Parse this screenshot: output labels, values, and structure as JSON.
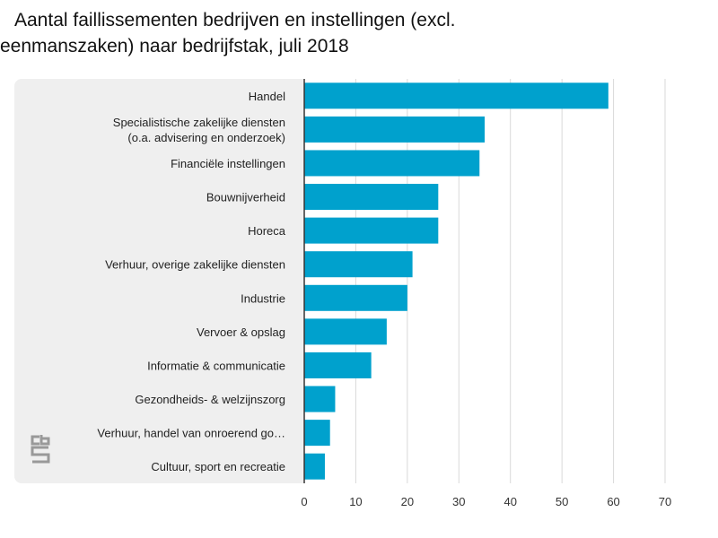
{
  "title": {
    "line1": "Aantal faillissementen bedrijven en instellingen (excl.",
    "line2": "eenmanszaken) naar bedrijfstak, juli 2018"
  },
  "colors": {
    "bar": "#00a1cd",
    "panel": "#efefef",
    "grid": "#d9d9d9",
    "axis": "#333333",
    "logo": "#999999"
  },
  "logo_text": "cbs",
  "chart_data": {
    "type": "bar",
    "orientation": "horizontal",
    "title": "Aantal faillissementen bedrijven en instellingen (excl. eenmanszaken) naar bedrijfstak, juli 2018",
    "categories": [
      [
        "Handel"
      ],
      [
        "Specialistische zakelijke diensten",
        "(o.a. advisering en onderzoek)"
      ],
      [
        "Financiële instellingen"
      ],
      [
        "Bouwnijverheid"
      ],
      [
        "Horeca"
      ],
      [
        "Verhuur, overige zakelijke diensten"
      ],
      [
        "Industrie"
      ],
      [
        "Vervoer & opslag"
      ],
      [
        "Informatie & communicatie"
      ],
      [
        "Gezondheids- & welzijnszorg"
      ],
      [
        "Verhuur, handel van onroerend go…"
      ],
      [
        "Cultuur, sport en recreatie"
      ]
    ],
    "values": [
      59,
      35,
      34,
      26,
      26,
      21,
      20,
      16,
      13,
      6,
      5,
      4
    ],
    "xlim": [
      0,
      70
    ],
    "xticks": [
      0,
      10,
      20,
      30,
      40,
      50,
      60,
      70
    ],
    "grid": true,
    "legend": "none"
  }
}
